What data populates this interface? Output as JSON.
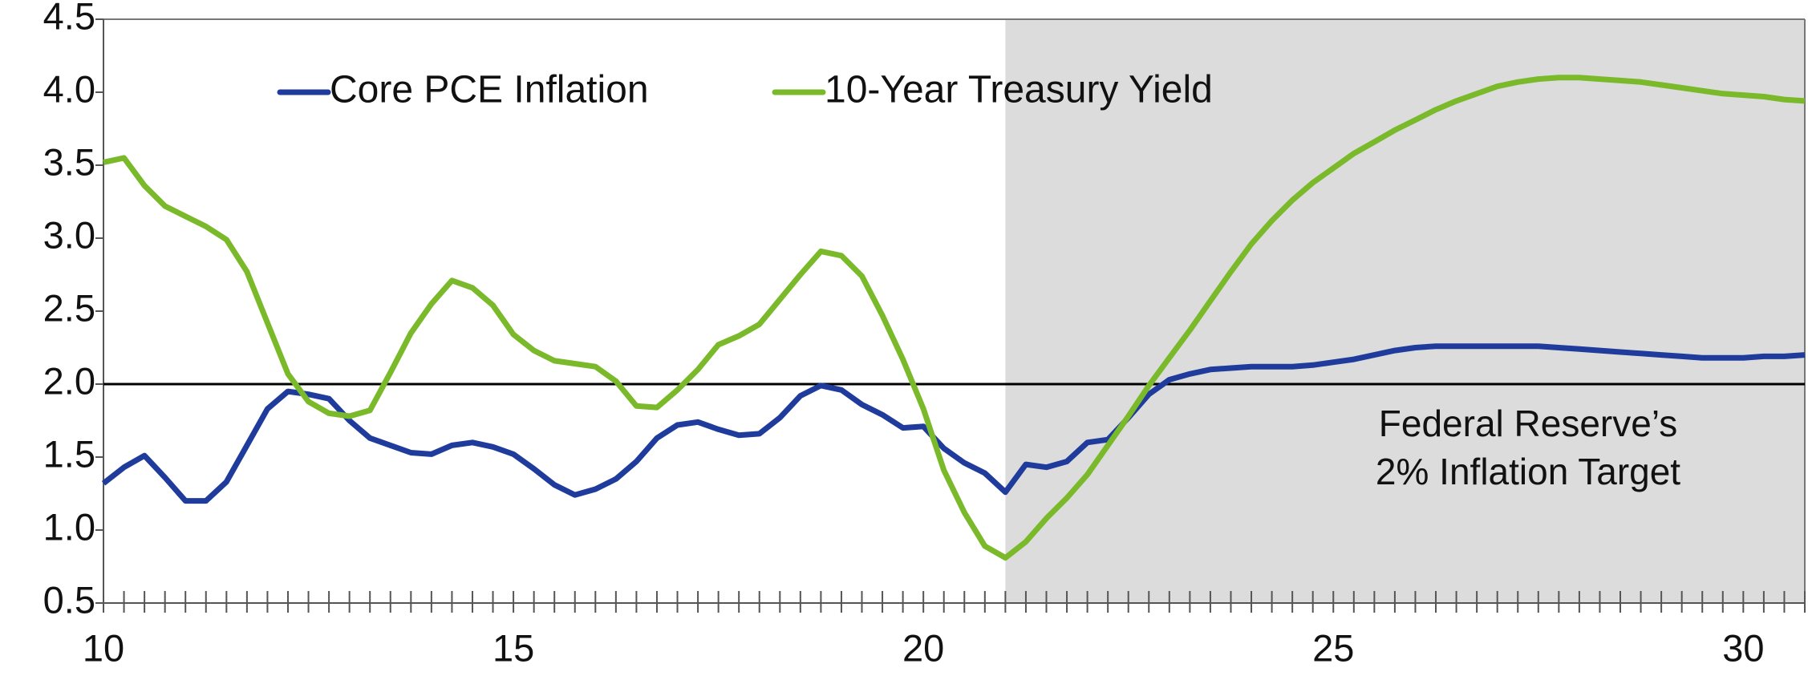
{
  "chart_data": {
    "type": "line",
    "legend": "top-left",
    "annotation": [
      "Federal Reserve’s",
      "2% Inflation Target"
    ],
    "target_line": 2,
    "shaded_from": 21,
    "shade_color": "#dcdcdc",
    "x": [
      10,
      10.25,
      10.5,
      10.75,
      11,
      11.25,
      11.5,
      11.75,
      12,
      12.25,
      12.5,
      12.75,
      13,
      13.25,
      13.5,
      13.75,
      14,
      14.25,
      14.5,
      14.75,
      15,
      15.25,
      15.5,
      15.75,
      16,
      16.25,
      16.5,
      16.75,
      17,
      17.25,
      17.5,
      17.75,
      18,
      18.25,
      18.5,
      18.75,
      19,
      19.25,
      19.5,
      19.75,
      20,
      20.25,
      20.5,
      20.75,
      21,
      21.25,
      21.5,
      21.75,
      22,
      22.25,
      22.5,
      22.75,
      23,
      23.25,
      23.5,
      23.75,
      24,
      24.25,
      24.5,
      24.75,
      25,
      25.25,
      25.5,
      25.75,
      26,
      26.25,
      26.5,
      26.75,
      27,
      27.25,
      27.5,
      27.75,
      28,
      28.25,
      28.5,
      28.75,
      29,
      29.25,
      29.5,
      29.75,
      30,
      30.25,
      30.5,
      30.75
    ],
    "series": [
      {
        "name": "Core PCE Inflation",
        "color": "#1f3c9c",
        "values": [
          1.32,
          1.43,
          1.51,
          1.36,
          1.2,
          1.2,
          1.33,
          1.58,
          1.83,
          1.95,
          1.93,
          1.9,
          1.75,
          1.63,
          1.58,
          1.53,
          1.52,
          1.58,
          1.6,
          1.57,
          1.52,
          1.42,
          1.31,
          1.24,
          1.28,
          1.35,
          1.47,
          1.63,
          1.72,
          1.74,
          1.69,
          1.65,
          1.66,
          1.77,
          1.92,
          1.99,
          1.96,
          1.86,
          1.79,
          1.7,
          1.71,
          1.56,
          1.46,
          1.39,
          1.26,
          1.45,
          1.43,
          1.47,
          1.6,
          1.62,
          1.77,
          1.93,
          2.03,
          2.07,
          2.1,
          2.11,
          2.12,
          2.12,
          2.12,
          2.13,
          2.15,
          2.17,
          2.2,
          2.23,
          2.25,
          2.26,
          2.26,
          2.26,
          2.26,
          2.26,
          2.26,
          2.25,
          2.24,
          2.23,
          2.22,
          2.21,
          2.2,
          2.19,
          2.18,
          2.18,
          2.18,
          2.19,
          2.19,
          2.2
        ]
      },
      {
        "name": "10-Year Treasury Yield",
        "color": "#7ab929",
        "values": [
          3.52,
          3.55,
          3.36,
          3.22,
          3.15,
          3.08,
          2.99,
          2.77,
          2.42,
          2.07,
          1.88,
          1.8,
          1.78,
          1.82,
          2.08,
          2.35,
          2.55,
          2.71,
          2.66,
          2.54,
          2.34,
          2.23,
          2.16,
          2.14,
          2.12,
          2.02,
          1.85,
          1.84,
          1.96,
          2.1,
          2.27,
          2.33,
          2.41,
          2.58,
          2.75,
          2.91,
          2.88,
          2.74,
          2.47,
          2.17,
          1.83,
          1.41,
          1.12,
          0.89,
          0.81,
          0.92,
          1.08,
          1.22,
          1.38,
          1.58,
          1.78,
          1.99,
          2.18,
          2.37,
          2.57,
          2.77,
          2.96,
          3.12,
          3.26,
          3.38,
          3.48,
          3.58,
          3.66,
          3.74,
          3.81,
          3.88,
          3.94,
          3.99,
          4.04,
          4.07,
          4.09,
          4.1,
          4.1,
          4.09,
          4.08,
          4.07,
          4.05,
          4.03,
          4.01,
          3.99,
          3.98,
          3.97,
          3.95,
          3.94
        ]
      }
    ],
    "xlim": [
      10,
      30.75
    ],
    "xticks": [
      10,
      15,
      20,
      25,
      30
    ],
    "ylim": [
      0.5,
      4.5
    ],
    "yticks": [
      {
        "value": 0.5,
        "label": "0.5"
      },
      {
        "value": 1,
        "label": "1.0"
      },
      {
        "value": 1.5,
        "label": "1.5"
      },
      {
        "value": 2,
        "label": "2.0"
      },
      {
        "value": 2.5,
        "label": "2.5"
      },
      {
        "value": 3,
        "label": "3.0"
      },
      {
        "value": 3.5,
        "label": "3.5"
      },
      {
        "value": 4,
        "label": "4.0"
      },
      {
        "value": 4.5,
        "label": "4.5"
      }
    ]
  }
}
